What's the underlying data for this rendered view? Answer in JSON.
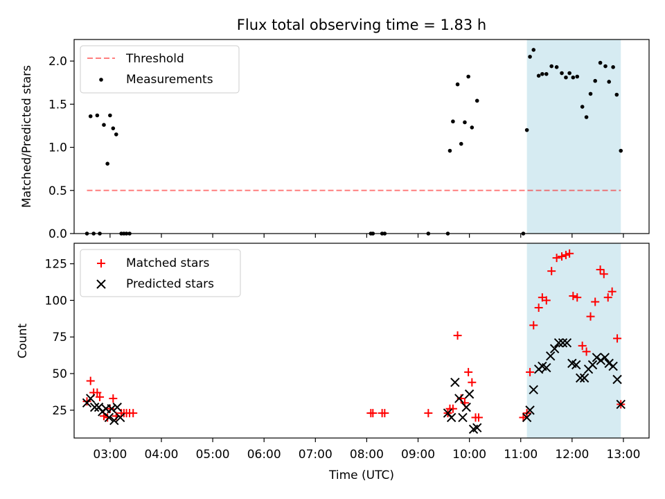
{
  "colors": {
    "shade": "#add8e6",
    "threshold": "#ff0000",
    "measurement": "#000000",
    "matched": "#ff0000",
    "predicted": "#000000"
  },
  "chart_data": [
    {
      "type": "scatter",
      "title": "Flux total observing time = 1.83 h",
      "xlabel": "",
      "ylabel": "Matched/Predicted stars",
      "xlim": [
        2.3,
        13.5
      ],
      "ylim": [
        0.0,
        2.25
      ],
      "yticks": [
        0.0,
        0.5,
        1.0,
        1.5,
        2.0
      ],
      "ytick_labels": [
        "0.0",
        "0.5",
        "1.0",
        "1.5",
        "2.0"
      ],
      "xticks": [
        3,
        4,
        5,
        6,
        7,
        8,
        9,
        10,
        11,
        12,
        13
      ],
      "legend_position": "top-left",
      "shaded_region": {
        "x_start": 11.12,
        "x_end": 12.95
      },
      "threshold": {
        "name": "Threshold",
        "y": 0.5,
        "x_range": [
          2.55,
          12.95
        ]
      },
      "series": [
        {
          "name": "Measurements",
          "marker": "dot",
          "x": [
            2.55,
            2.62,
            2.68,
            2.75,
            2.8,
            2.88,
            2.95,
            3.0,
            3.06,
            3.12,
            3.22,
            3.27,
            3.32,
            3.38,
            8.08,
            8.12,
            8.3,
            8.35,
            9.2,
            9.58,
            9.62,
            9.68,
            9.77,
            9.84,
            9.91,
            9.98,
            10.05,
            10.15,
            11.05,
            11.12,
            11.18,
            11.25,
            11.35,
            11.42,
            11.5,
            11.6,
            11.7,
            11.8,
            11.88,
            11.95,
            12.02,
            12.1,
            12.2,
            12.28,
            12.36,
            12.45,
            12.55,
            12.65,
            12.72,
            12.8,
            12.87,
            12.95
          ],
          "y": [
            0.0,
            1.36,
            0.0,
            1.37,
            0.0,
            1.26,
            0.81,
            1.37,
            1.22,
            1.15,
            0.0,
            0.0,
            0.0,
            0.0,
            0.0,
            0.0,
            0.0,
            0.0,
            0.0,
            0.0,
            0.96,
            1.3,
            1.73,
            1.04,
            1.29,
            1.82,
            1.23,
            1.54,
            0.0,
            1.2,
            2.05,
            2.13,
            1.83,
            1.85,
            1.85,
            1.94,
            1.93,
            1.86,
            1.81,
            1.86,
            1.81,
            1.82,
            1.47,
            1.35,
            1.62,
            1.77,
            1.98,
            1.94,
            1.76,
            1.93,
            1.61,
            0.96
          ]
        }
      ]
    },
    {
      "type": "scatter",
      "title": "",
      "xlabel": "Time (UTC)",
      "ylabel": "Count",
      "xlim": [
        2.3,
        13.5
      ],
      "ylim": [
        6,
        139
      ],
      "yticks": [
        25,
        50,
        75,
        100,
        125
      ],
      "ytick_labels": [
        "25",
        "50",
        "75",
        "100",
        "125"
      ],
      "xticks": [
        3,
        4,
        5,
        6,
        7,
        8,
        9,
        10,
        11,
        12,
        13
      ],
      "xtick_labels": [
        "03:00",
        "04:00",
        "05:00",
        "06:00",
        "07:00",
        "08:00",
        "09:00",
        "10:00",
        "11:00",
        "12:00",
        "13:00"
      ],
      "legend_position": "top-left",
      "shaded_region": {
        "x_start": 11.12,
        "x_end": 12.95
      },
      "series": [
        {
          "name": "Matched stars",
          "marker": "plus",
          "x": [
            2.55,
            2.62,
            2.68,
            2.75,
            2.8,
            2.88,
            2.95,
            3.0,
            3.06,
            3.12,
            3.22,
            3.27,
            3.32,
            3.38,
            3.45,
            8.08,
            8.12,
            8.3,
            8.35,
            9.2,
            9.58,
            9.62,
            9.68,
            9.77,
            9.84,
            9.91,
            9.98,
            10.05,
            10.12,
            10.18,
            11.05,
            11.12,
            11.18,
            11.25,
            11.35,
            11.42,
            11.5,
            11.6,
            11.7,
            11.8,
            11.88,
            11.95,
            12.02,
            12.1,
            12.2,
            12.28,
            12.36,
            12.45,
            12.55,
            12.62,
            12.7,
            12.78,
            12.88,
            12.95
          ],
          "y": [
            31,
            45,
            37,
            37,
            34,
            21,
            20,
            26,
            33,
            21,
            23,
            23,
            23,
            23,
            23,
            23,
            23,
            23,
            23,
            23,
            23,
            26,
            26,
            76,
            33,
            30,
            51,
            44,
            20,
            20,
            20,
            23,
            51,
            83,
            95,
            102,
            100,
            120,
            129,
            130,
            131,
            132,
            103,
            102,
            69,
            65,
            89,
            99,
            121,
            118,
            102,
            106,
            74,
            29
          ]
        },
        {
          "name": "Predicted stars",
          "marker": "x",
          "x": [
            2.55,
            2.62,
            2.7,
            2.78,
            2.85,
            2.92,
            2.98,
            3.03,
            3.08,
            3.14,
            3.2,
            9.58,
            9.65,
            9.72,
            9.8,
            9.87,
            9.94,
            10.0,
            10.08,
            10.15,
            11.12,
            11.18,
            11.25,
            11.35,
            11.42,
            11.5,
            11.58,
            11.66,
            11.74,
            11.82,
            11.9,
            12.0,
            12.08,
            12.16,
            12.24,
            12.32,
            12.4,
            12.48,
            12.56,
            12.64,
            12.72,
            12.8,
            12.88,
            12.95
          ],
          "y": [
            30,
            33,
            27,
            27,
            24,
            26,
            20,
            26,
            18,
            27,
            20,
            23,
            20,
            44,
            33,
            20,
            27,
            36,
            12,
            13,
            20,
            25,
            39,
            53,
            55,
            54,
            62,
            67,
            71,
            71,
            71,
            57,
            56,
            47,
            47,
            53,
            56,
            61,
            59,
            61,
            57,
            55,
            46,
            29
          ]
        }
      ]
    }
  ]
}
